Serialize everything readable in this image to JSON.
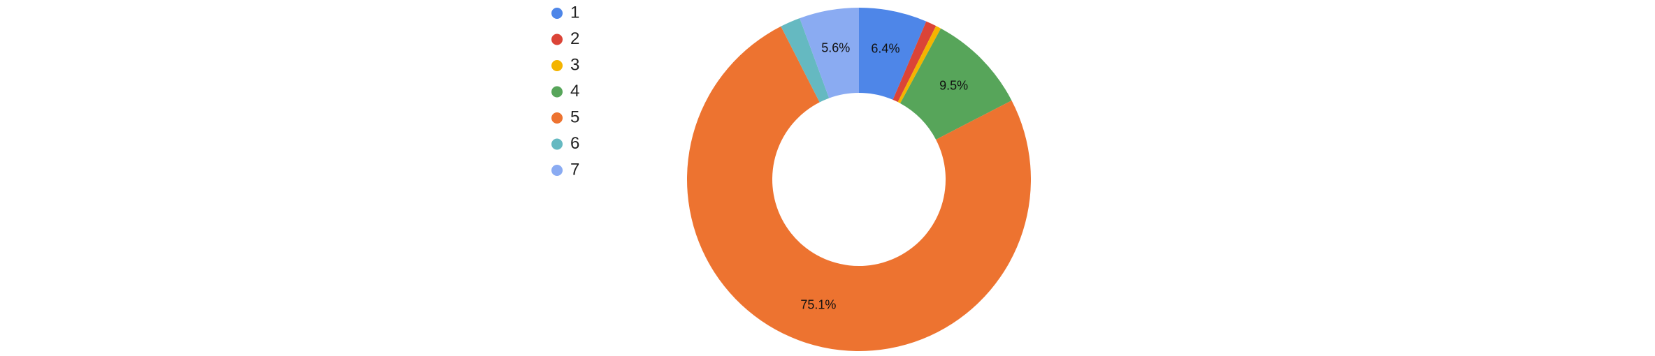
{
  "chart_data": {
    "type": "donut",
    "categories": [
      "1",
      "2",
      "3",
      "4",
      "5",
      "6",
      "7"
    ],
    "values": [
      6.4,
      1.0,
      0.5,
      9.5,
      75.1,
      1.9,
      5.6
    ],
    "value_labels": [
      "6.4%",
      null,
      null,
      "9.5%",
      "75.1%",
      null,
      "5.6%"
    ],
    "colors": [
      "#4e86e8",
      "#db4437",
      "#f4b400",
      "#57a55a",
      "#ed7330",
      "#65b9c1",
      "#8aabf2"
    ],
    "legend": "left"
  }
}
